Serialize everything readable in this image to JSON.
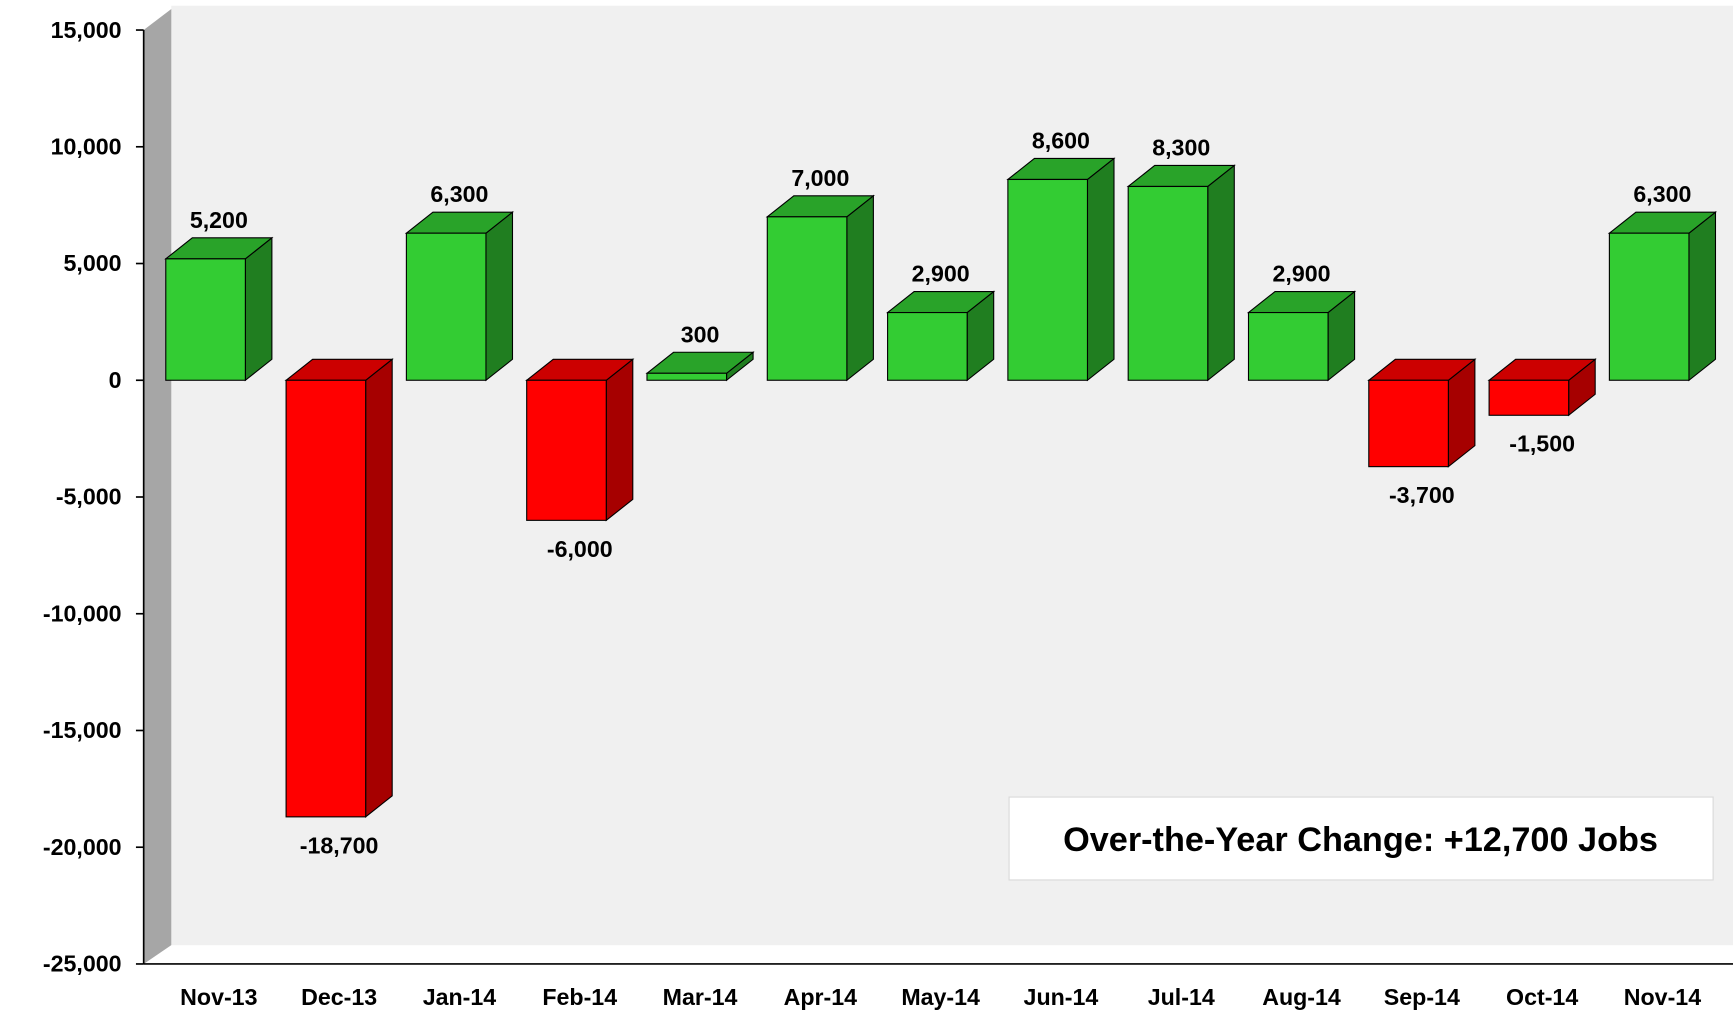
{
  "chart_data": {
    "type": "bar3d",
    "categories": [
      "Nov-13",
      "Dec-13",
      "Jan-14",
      "Feb-14",
      "Mar-14",
      "Apr-14",
      "May-14",
      "Jun-14",
      "Jul-14",
      "Aug-14",
      "Sep-14",
      "Oct-14",
      "Nov-14"
    ],
    "values": [
      5200,
      -18700,
      6300,
      -6000,
      300,
      7000,
      2900,
      8600,
      8300,
      2900,
      -3700,
      -1500,
      6300
    ],
    "value_labels": [
      "5,200",
      "-18,700",
      "6,300",
      "-6,000",
      "300",
      "7,000",
      "2,900",
      "8,600",
      "8,300",
      "2,900",
      "-3,700",
      "-1,500",
      "6,300"
    ],
    "colors": {
      "positive": "#33cc33",
      "negative": "#ff0000"
    },
    "ylim": [
      -25000,
      15000
    ],
    "yticks": [
      {
        "value": -25000,
        "label": "-25,000"
      },
      {
        "value": -20000,
        "label": "-20,000"
      },
      {
        "value": -15000,
        "label": "-15,000"
      },
      {
        "value": -10000,
        "label": "-10,000"
      },
      {
        "value": -5000,
        "label": "-5,000"
      },
      0,
      {
        "value": 5000,
        "label": "5,000"
      },
      {
        "value": 10000,
        "label": "10,000"
      },
      {
        "value": 15000,
        "label": "15,000"
      }
    ],
    "annotation": "Over-the-Year Change: +12,700 Jobs"
  }
}
